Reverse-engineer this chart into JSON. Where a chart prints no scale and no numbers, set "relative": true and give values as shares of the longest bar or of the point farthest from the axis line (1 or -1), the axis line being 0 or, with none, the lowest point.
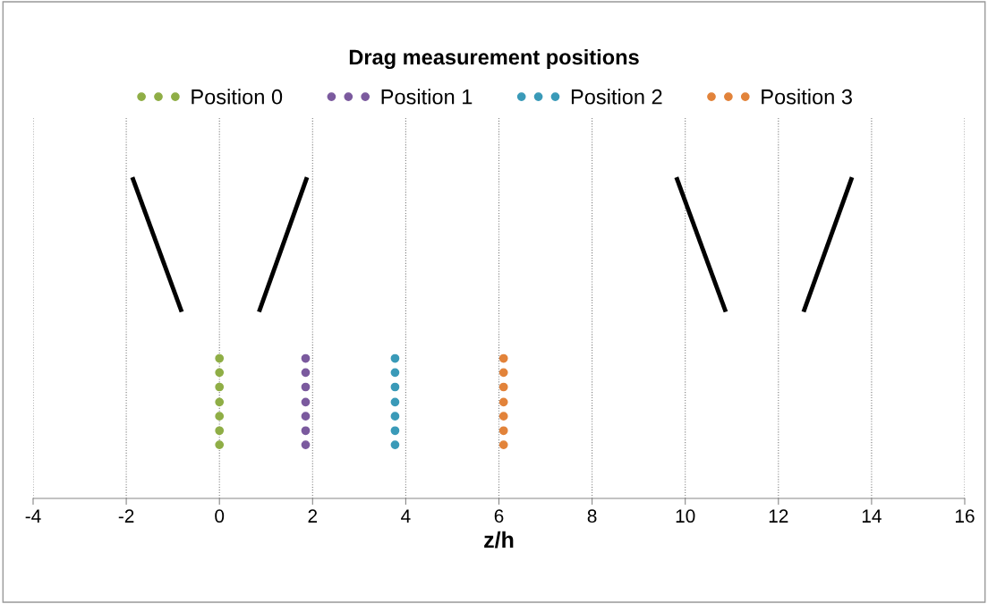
{
  "chart_data": {
    "type": "scatter",
    "title": "Drag measurement positions",
    "xlabel": "z/h",
    "relative": true,
    "xlim": [
      -4,
      16
    ],
    "xticks": [
      -4,
      -2,
      0,
      2,
      4,
      6,
      8,
      10,
      12,
      14,
      16
    ],
    "tick_labels": "x",
    "grid": "x",
    "legend": "top",
    "marker": "circle",
    "series": [
      {
        "name": "Position 0",
        "color": "#8fae46",
        "x": [
          0,
          0,
          0,
          0,
          0,
          0,
          0
        ],
        "values": [
          0.436,
          0.392,
          0.347,
          0.3,
          0.256,
          0.211,
          0.167
        ]
      },
      {
        "name": "Position 1",
        "color": "#7b5a9e",
        "x": [
          1.85,
          1.85,
          1.85,
          1.85,
          1.85,
          1.85,
          1.85
        ],
        "values": [
          0.436,
          0.392,
          0.347,
          0.3,
          0.256,
          0.211,
          0.167
        ]
      },
      {
        "name": "Position 2",
        "color": "#3a9ab8",
        "x": [
          3.77,
          3.77,
          3.77,
          3.77,
          3.77,
          3.77,
          3.77
        ],
        "values": [
          0.436,
          0.392,
          0.347,
          0.3,
          0.256,
          0.211,
          0.167
        ]
      },
      {
        "name": "Position 3",
        "color": "#e2833a",
        "x": [
          6.1,
          6.1,
          6.1,
          6.1,
          6.1,
          6.1,
          6.1
        ],
        "values": [
          0.436,
          0.392,
          0.347,
          0.3,
          0.256,
          0.211,
          0.167
        ]
      },
      {
        "type": "line",
        "color": "#000000",
        "marker": "none",
        "x": [
          -1.87,
          -0.81
        ],
        "values": [
          1.0,
          0.581
        ]
      },
      {
        "type": "line",
        "color": "#000000",
        "marker": "none",
        "x": [
          0.85,
          1.88
        ],
        "values": [
          0.581,
          1.0
        ]
      },
      {
        "type": "line",
        "color": "#000000",
        "marker": "none",
        "x": [
          9.81,
          10.87
        ],
        "values": [
          1.0,
          0.581
        ]
      },
      {
        "type": "line",
        "color": "#000000",
        "marker": "none",
        "x": [
          12.54,
          13.58
        ],
        "values": [
          0.581,
          1.0
        ]
      }
    ]
  }
}
